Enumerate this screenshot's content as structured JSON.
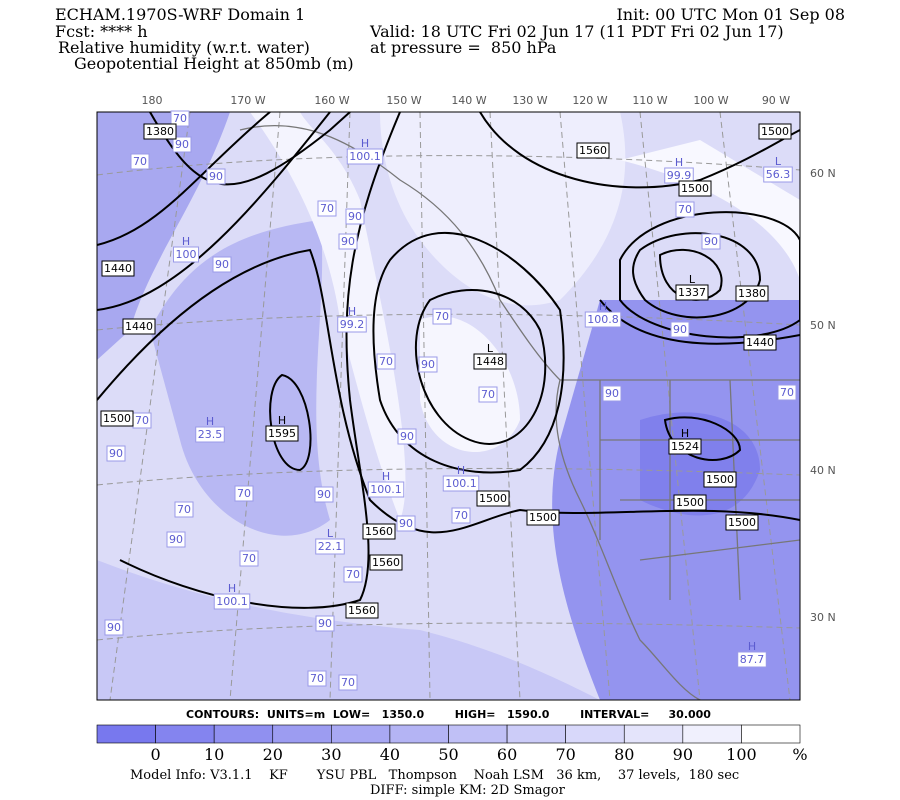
{
  "header": {
    "left": [
      "ECHAM.1970S-WRF Domain 1",
      "Fcst: **** h",
      "Relative humidity (w.r.t. water)",
      "Geopotential Height at 850mb (m)"
    ],
    "right": [
      "Init: 00 UTC Mon 01 Sep 08",
      "Valid: 18 UTC Fri 02 Jun 17 (11 PDT Fri 02 Jun 17)",
      "at pressure =  850 hPa"
    ]
  },
  "map": {
    "lon_labels": [
      "180",
      "170 W",
      "160 W",
      "150 W",
      "140 W",
      "130 W",
      "120 W",
      "110 W",
      "100 W",
      "90 W"
    ],
    "lat_labels": [
      "60 N",
      "50 N",
      "40 N",
      "30 N"
    ],
    "height_labels": [
      "1380",
      "1560",
      "1500",
      "1500",
      "1440",
      "1440",
      "1380",
      "1440",
      "1500",
      "1500",
      "1500",
      "1500",
      "1500",
      "1500",
      "1560",
      "1560",
      "1560"
    ],
    "centers": [
      {
        "letter": "H",
        "value": "100.1"
      },
      {
        "letter": "H",
        "value": "100"
      },
      {
        "letter": "H",
        "value": "99.2"
      },
      {
        "letter": "L",
        "value": "1448"
      },
      {
        "letter": "H",
        "value": "1595"
      },
      {
        "letter": "H",
        "value": "100.1"
      },
      {
        "letter": "H",
        "value": "100.1"
      },
      {
        "letter": "L",
        "value": "22.1"
      },
      {
        "letter": "H",
        "value": "100.1"
      },
      {
        "letter": "L",
        "value": "1337"
      },
      {
        "letter": "H",
        "value": "99.9"
      },
      {
        "letter": "H",
        "value": "100.8"
      },
      {
        "letter": "H",
        "value": "1524"
      },
      {
        "letter": "L",
        "value": "56.3"
      },
      {
        "letter": "H",
        "value": "87.7"
      },
      {
        "letter": "H",
        "value": "23.5"
      }
    ],
    "rh_labels": [
      "70",
      "90",
      "70",
      "90",
      "70",
      "90",
      "90",
      "90",
      "70",
      "70",
      "90",
      "70",
      "90",
      "70",
      "90",
      "90",
      "70",
      "90",
      "70",
      "90",
      "70",
      "90",
      "70",
      "70",
      "90",
      "90",
      "70",
      "70",
      "90",
      "70",
      "90",
      "70"
    ]
  },
  "contour_info": "CONTOURS:  UNITS=m  LOW=   1350.0        HIGH=   1590.0        INTERVAL=     30.000",
  "colorbar": {
    "labels": [
      "0",
      "10",
      "20",
      "30",
      "40",
      "50",
      "60",
      "70",
      "80",
      "90",
      "100"
    ],
    "unit": "%",
    "colors": [
      "#7878ee",
      "#8484ef",
      "#9090f0",
      "#9c9cf1",
      "#a8a8f3",
      "#b4b4f4",
      "#c0c0f6",
      "#ccccf8",
      "#d8d8fa",
      "#e4e4fb",
      "#f0f0fd",
      "#ffffff"
    ]
  },
  "footer": [
    "Model Info: V3.1.1    KF       YSU PBL   Thompson    Noah LSM   36 km,    37 levels,  180 sec",
    "DIFF: simple KM: 2D Smagor"
  ]
}
